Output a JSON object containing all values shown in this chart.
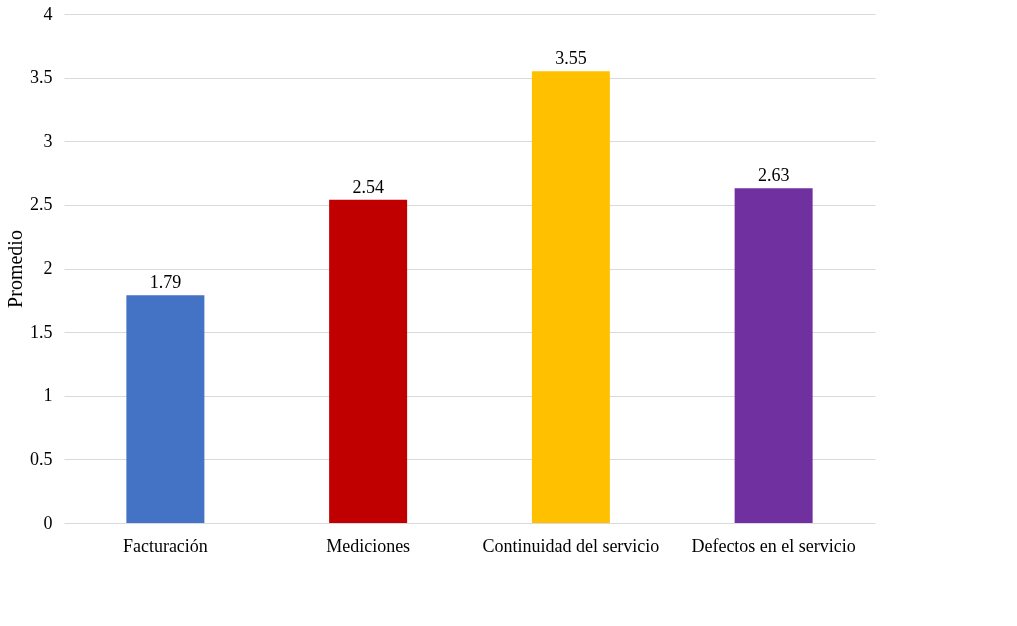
{
  "chart_data": {
    "type": "bar",
    "ylabel": "Promedio",
    "categories": [
      "Facturación",
      "Mediciones",
      "Continuidad del servicio",
      "Defectos en el servicio"
    ],
    "values": [
      1.79,
      2.54,
      3.55,
      2.63
    ],
    "colors": [
      "#4472c4",
      "#c00000",
      "#ffc000",
      "#7030a0"
    ],
    "ylim": [
      0,
      4
    ],
    "yticks": [
      0,
      0.5,
      1,
      1.5,
      2,
      2.5,
      3,
      3.5,
      4
    ],
    "grid": "y",
    "data_labels": true
  }
}
